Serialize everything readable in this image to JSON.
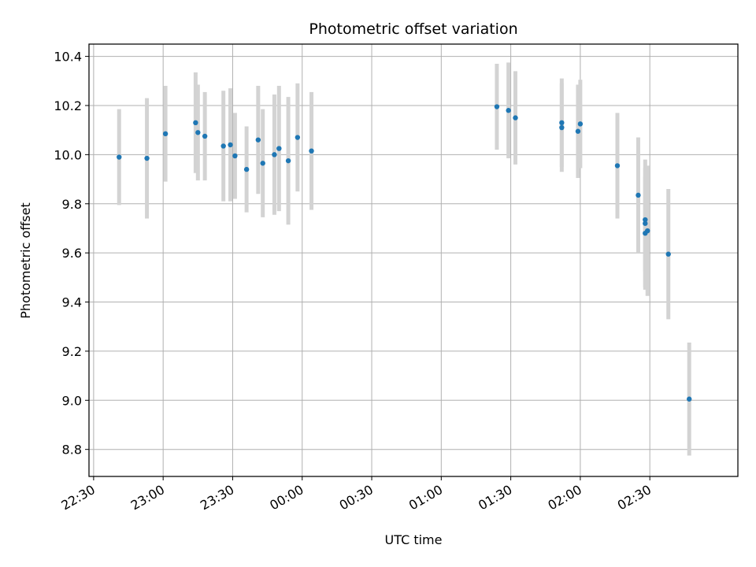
{
  "chart_data": {
    "type": "scatter",
    "title": "Photometric offset variation",
    "xlabel": "UTC time",
    "ylabel": "Photometric offset",
    "xlim": [
      "22:28",
      "03:08"
    ],
    "ylim": [
      8.69,
      10.45
    ],
    "grid": true,
    "error_bar_color": "#d3d3d3",
    "point_color": "#1f77b4",
    "x_ticks": [
      "22:30",
      "23:00",
      "23:30",
      "00:00",
      "00:30",
      "01:00",
      "01:30",
      "02:00",
      "02:30"
    ],
    "y_ticks": [
      "8.8",
      "9.0",
      "9.2",
      "9.4",
      "9.6",
      "9.8",
      "10.0",
      "10.2",
      "10.4"
    ],
    "points": [
      {
        "time": "22:41",
        "y": 9.99,
        "err": 0.195
      },
      {
        "time": "22:53",
        "y": 9.985,
        "err": 0.245
      },
      {
        "time": "23:01",
        "y": 10.085,
        "err": 0.195
      },
      {
        "time": "23:14",
        "y": 10.13,
        "err": 0.205
      },
      {
        "time": "23:15",
        "y": 10.09,
        "err": 0.195
      },
      {
        "time": "23:18",
        "y": 10.075,
        "err": 0.18
      },
      {
        "time": "23:26",
        "y": 10.035,
        "err": 0.225
      },
      {
        "time": "23:29",
        "y": 10.04,
        "err": 0.23
      },
      {
        "time": "23:31",
        "y": 9.995,
        "err": 0.175
      },
      {
        "time": "23:36",
        "y": 9.94,
        "err": 0.175
      },
      {
        "time": "23:41",
        "y": 10.06,
        "err": 0.22
      },
      {
        "time": "23:43",
        "y": 9.965,
        "err": 0.22
      },
      {
        "time": "23:48",
        "y": 10.0,
        "err": 0.245
      },
      {
        "time": "23:50",
        "y": 10.025,
        "err": 0.255
      },
      {
        "time": "23:54",
        "y": 9.975,
        "err": 0.26
      },
      {
        "time": "23:58",
        "y": 10.07,
        "err": 0.22
      },
      {
        "time": "00:04",
        "y": 10.015,
        "err": 0.24
      },
      {
        "time": "01:24",
        "y": 10.195,
        "err": 0.175
      },
      {
        "time": "01:29",
        "y": 10.18,
        "err": 0.195
      },
      {
        "time": "01:32",
        "y": 10.15,
        "err": 0.19
      },
      {
        "time": "01:52",
        "y": 10.11,
        "err": 0.18
      },
      {
        "time": "01:52",
        "y": 10.13,
        "err": 0.18
      },
      {
        "time": "01:59",
        "y": 10.095,
        "err": 0.19
      },
      {
        "time": "02:00",
        "y": 10.125,
        "err": 0.18
      },
      {
        "time": "02:16",
        "y": 9.955,
        "err": 0.215
      },
      {
        "time": "02:25",
        "y": 9.835,
        "err": 0.235
      },
      {
        "time": "02:28",
        "y": 9.735,
        "err": 0.21
      },
      {
        "time": "02:28",
        "y": 9.72,
        "err": 0.26
      },
      {
        "time": "02:28",
        "y": 9.68,
        "err": 0.23
      },
      {
        "time": "02:29",
        "y": 9.69,
        "err": 0.265
      },
      {
        "time": "02:38",
        "y": 9.595,
        "err": 0.265
      },
      {
        "time": "02:47",
        "y": 9.005,
        "err": 0.23
      }
    ]
  }
}
